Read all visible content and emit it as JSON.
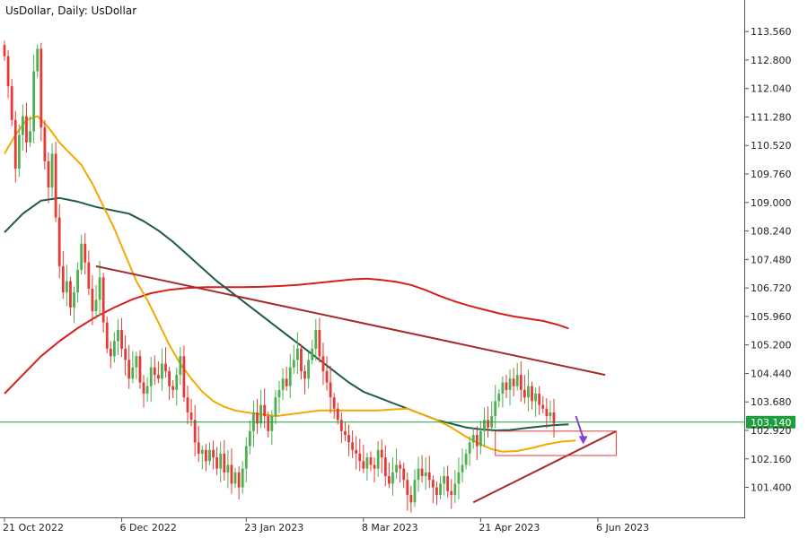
{
  "header": {
    "symbol": "UsDollar",
    "timeframe": "Daily",
    "title": "UsDollar, Daily:  UsDollar"
  },
  "chart_data": {
    "type": "candlestick",
    "title": "UsDollar, Daily:  UsDollar",
    "ylim": [
      100.6,
      114.4
    ],
    "y_ticks": [
      "113.560",
      "112.800",
      "112.040",
      "111.280",
      "110.520",
      "109.760",
      "109.000",
      "108.240",
      "107.480",
      "106.720",
      "105.960",
      "105.200",
      "104.440",
      "103.680",
      "102.920",
      "102.160",
      "101.400"
    ],
    "x_ticks": [
      {
        "label": "21 Oct 2022",
        "bar": 0
      },
      {
        "label": "6 Dec 2022",
        "bar": 32
      },
      {
        "label": "23 Jan 2023",
        "bar": 66
      },
      {
        "label": "8 Mar 2023",
        "bar": 98
      },
      {
        "label": "21 Apr 2023",
        "bar": 130
      },
      {
        "label": "6 Jun 2023",
        "bar": 162
      }
    ],
    "current_price": "103.140",
    "colors": {
      "bull": "#4caf50",
      "bear": "#e53935",
      "ema_fast": "#f4a900",
      "ema_mid": "#1f5a4c",
      "ema_slow": "#d81e1e",
      "trendline": "#a52a2a",
      "price_line": "#1e9e3e",
      "zone": "#e53935",
      "arrow": "#8a3fd1"
    },
    "closes": [
      112.9,
      112.1,
      111.2,
      109.9,
      110.8,
      111.3,
      110.6,
      110.9,
      112.5,
      113.1,
      111.0,
      110.1,
      109.4,
      110.3,
      108.6,
      107.3,
      106.6,
      106.9,
      106.2,
      106.6,
      107.2,
      107.9,
      107.4,
      106.7,
      106.1,
      106.4,
      107.0,
      105.8,
      105.1,
      104.9,
      105.3,
      105.6,
      105.1,
      104.8,
      104.3,
      104.6,
      104.9,
      104.2,
      103.9,
      104.1,
      104.6,
      104.4,
      104.3,
      104.7,
      104.5,
      104.1,
      104.0,
      104.4,
      104.9,
      103.8,
      103.4,
      103.2,
      102.6,
      102.3,
      102.4,
      102.1,
      102.4,
      102.2,
      101.9,
      102.3,
      101.8,
      102.0,
      101.5,
      101.8,
      101.4,
      101.9,
      102.5,
      102.9,
      103.4,
      103.1,
      103.6,
      103.3,
      102.9,
      103.3,
      103.8,
      104.0,
      104.3,
      104.1,
      104.6,
      104.8,
      105.1,
      104.5,
      104.3,
      104.8,
      105.1,
      105.6,
      104.9,
      104.5,
      104.2,
      103.8,
      103.5,
      103.2,
      102.9,
      102.8,
      102.6,
      102.4,
      102.3,
      102.1,
      101.9,
      102.2,
      102.0,
      101.9,
      102.4,
      102.2,
      101.7,
      101.5,
      101.8,
      102.0,
      101.9,
      101.6,
      101.2,
      101.0,
      101.6,
      101.9,
      101.7,
      101.8,
      101.6,
      101.4,
      101.2,
      101.5,
      101.7,
      101.3,
      101.2,
      101.5,
      101.8,
      102.0,
      102.3,
      102.6,
      102.8,
      102.5,
      102.9,
      103.2,
      103.0,
      103.3,
      103.7,
      103.9,
      104.2,
      104.0,
      104.3,
      104.1,
      104.4,
      104.0,
      103.8,
      104.1,
      103.7,
      103.9,
      103.6,
      103.5,
      103.3,
      103.4,
      103.1
    ],
    "ema_fast": [
      [
        0,
        110.3
      ],
      [
        3,
        110.8
      ],
      [
        6,
        111.2
      ],
      [
        9,
        111.3
      ],
      [
        12,
        111.0
      ],
      [
        15,
        110.6
      ],
      [
        18,
        110.3
      ],
      [
        21,
        110.0
      ],
      [
        24,
        109.5
      ],
      [
        27,
        108.9
      ],
      [
        30,
        108.3
      ],
      [
        33,
        107.6
      ],
      [
        36,
        106.9
      ],
      [
        39,
        106.4
      ],
      [
        42,
        105.8
      ],
      [
        45,
        105.2
      ],
      [
        48,
        104.7
      ],
      [
        51,
        104.3
      ],
      [
        54,
        103.95
      ],
      [
        57,
        103.7
      ],
      [
        60,
        103.55
      ],
      [
        63,
        103.45
      ],
      [
        66,
        103.4
      ],
      [
        70,
        103.35
      ],
      [
        74,
        103.3
      ],
      [
        78,
        103.35
      ],
      [
        82,
        103.4
      ],
      [
        86,
        103.45
      ],
      [
        90,
        103.45
      ],
      [
        94,
        103.45
      ],
      [
        98,
        103.45
      ],
      [
        102,
        103.45
      ],
      [
        106,
        103.48
      ],
      [
        110,
        103.5
      ],
      [
        114,
        103.35
      ],
      [
        118,
        103.2
      ],
      [
        122,
        103.0
      ],
      [
        126,
        102.75
      ],
      [
        130,
        102.55
      ],
      [
        133,
        102.42
      ],
      [
        136,
        102.35
      ],
      [
        140,
        102.37
      ],
      [
        144,
        102.45
      ],
      [
        148,
        102.55
      ],
      [
        152,
        102.62
      ],
      [
        156,
        102.65
      ]
    ],
    "ema_mid": [
      [
        0,
        108.2
      ],
      [
        5,
        108.7
      ],
      [
        10,
        109.05
      ],
      [
        15,
        109.12
      ],
      [
        20,
        109.02
      ],
      [
        25,
        108.88
      ],
      [
        30,
        108.78
      ],
      [
        34,
        108.7
      ],
      [
        38,
        108.5
      ],
      [
        42,
        108.25
      ],
      [
        46,
        107.95
      ],
      [
        50,
        107.6
      ],
      [
        54,
        107.25
      ],
      [
        58,
        106.9
      ],
      [
        62,
        106.6
      ],
      [
        66,
        106.3
      ],
      [
        70,
        106.0
      ],
      [
        74,
        105.7
      ],
      [
        78,
        105.4
      ],
      [
        82,
        105.1
      ],
      [
        86,
        104.8
      ],
      [
        90,
        104.5
      ],
      [
        94,
        104.2
      ],
      [
        98,
        103.95
      ],
      [
        102,
        103.8
      ],
      [
        106,
        103.65
      ],
      [
        110,
        103.5
      ],
      [
        114,
        103.35
      ],
      [
        118,
        103.2
      ],
      [
        122,
        103.1
      ],
      [
        126,
        103.0
      ],
      [
        130,
        102.95
      ],
      [
        134,
        102.92
      ],
      [
        138,
        102.93
      ],
      [
        142,
        102.98
      ],
      [
        146,
        103.02
      ],
      [
        150,
        103.06
      ],
      [
        154,
        103.08
      ]
    ],
    "ema_slow": [
      [
        0,
        103.9
      ],
      [
        5,
        104.4
      ],
      [
        10,
        104.9
      ],
      [
        15,
        105.3
      ],
      [
        20,
        105.65
      ],
      [
        25,
        105.95
      ],
      [
        30,
        106.2
      ],
      [
        35,
        106.42
      ],
      [
        40,
        106.58
      ],
      [
        45,
        106.67
      ],
      [
        50,
        106.72
      ],
      [
        55,
        106.74
      ],
      [
        60,
        106.74
      ],
      [
        65,
        106.74
      ],
      [
        70,
        106.75
      ],
      [
        75,
        106.77
      ],
      [
        80,
        106.8
      ],
      [
        85,
        106.85
      ],
      [
        90,
        106.9
      ],
      [
        95,
        106.95
      ],
      [
        99,
        106.97
      ],
      [
        103,
        106.93
      ],
      [
        107,
        106.88
      ],
      [
        111,
        106.8
      ],
      [
        115,
        106.66
      ],
      [
        119,
        106.5
      ],
      [
        123,
        106.36
      ],
      [
        127,
        106.24
      ],
      [
        131,
        106.14
      ],
      [
        135,
        106.04
      ],
      [
        139,
        105.96
      ],
      [
        143,
        105.9
      ],
      [
        147,
        105.84
      ],
      [
        151,
        105.74
      ],
      [
        154,
        105.64
      ]
    ],
    "trendlines": [
      {
        "from": [
          25,
          107.3
        ],
        "to": [
          164,
          104.4
        ]
      },
      {
        "from": [
          128,
          101.0
        ],
        "to": [
          167,
          102.9
        ]
      }
    ],
    "zone": {
      "from_bar": 134,
      "to_bar": 167,
      "low": 102.25,
      "high": 102.9
    },
    "arrow": {
      "from": [
        156,
        103.3
      ],
      "to": [
        158,
        102.6
      ]
    }
  }
}
